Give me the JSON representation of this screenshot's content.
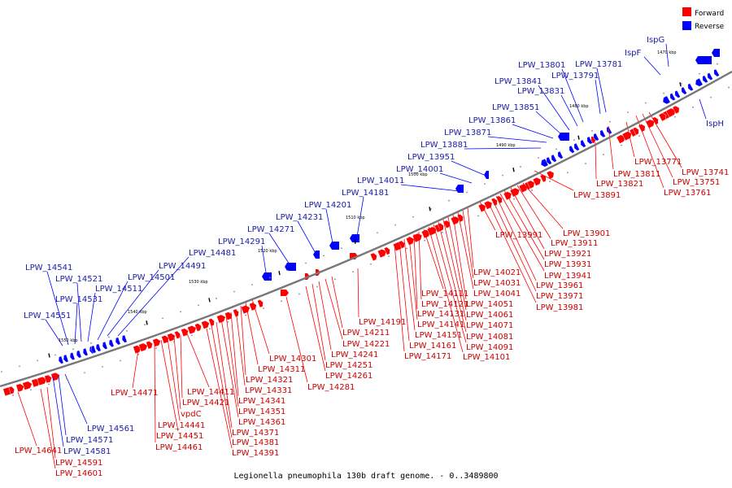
{
  "caption": "Legionella pneumophila 130b draft genome. - 0..3489800",
  "legend": {
    "forward_label": "Forward",
    "reverse_label": "Reverse",
    "forward_color": "#ff0000",
    "reverse_color": "#0000ff"
  },
  "colors": {
    "forward_text": "#cc0000",
    "reverse_text": "#1a1aa6",
    "backbone": "#777777"
  },
  "kbp_labels": [
    "1470 kbp",
    "1480 kbp",
    "1490 kbp",
    "1500 kbp",
    "1510 kbp",
    "1520 kbp",
    "1530 kbp",
    "1540 kbp",
    "1550 kbp"
  ],
  "reverse_genes": [
    "IspG",
    "IspF",
    "LPW_13781",
    "LPW_13791",
    "LPW_13801",
    "LPW_13831",
    "LPW_13841",
    "LPW_13851",
    "LPW_13861",
    "LPW_13871",
    "LPW_13881",
    "LPW_13951",
    "LPW_14001",
    "LPW_14011",
    "LPW_14181",
    "LPW_14201",
    "LPW_14231",
    "LPW_14271",
    "LPW_14291",
    "LPW_14481",
    "LPW_14491",
    "LPW_14501",
    "LPW_14511",
    "LPW_14521",
    "LPW_14531",
    "LPW_14541",
    "LPW_14551",
    "LPW_14561",
    "LPW_14571",
    "LPW_14581",
    "IspH"
  ],
  "forward_genes": [
    "LPW_13741",
    "LPW_13751",
    "LPW_13761",
    "LPW_13771",
    "LPW_13811",
    "LPW_13821",
    "LPW_13891",
    "LPW_13901",
    "LPW_13911",
    "LPW_13921",
    "LPW_13931",
    "LPW_13941",
    "LPW_13961",
    "LPW_13971",
    "LPW_13981",
    "LPW_13991",
    "LPW_14021",
    "LPW_14031",
    "LPW_14041",
    "LPW_14051",
    "LPW_14061",
    "LPW_14071",
    "LPW_14081",
    "LPW_14091",
    "LPW_14101",
    "LPW_14111",
    "LPW_14121",
    "LPW_14131",
    "LPW_14141",
    "LPW_14151",
    "LPW_14161",
    "LPW_14171",
    "LPW_14191",
    "LPW_14211",
    "LPW_14221",
    "LPW_14241",
    "LPW_14251",
    "LPW_14261",
    "LPW_14281",
    "LPW_14301",
    "LPW_14311",
    "LPW_14321",
    "LPW_14331",
    "LPW_14341",
    "LPW_14351",
    "LPW_14361",
    "LPW_14371",
    "LPW_14381",
    "LPW_14391",
    "LPW_14411",
    "LPW_14421",
    "vpdC",
    "LPW_14441",
    "LPW_14451",
    "LPW_14461",
    "LPW_14471",
    "LPW_14591",
    "LPW_14601",
    "LPW_14641"
  ]
}
